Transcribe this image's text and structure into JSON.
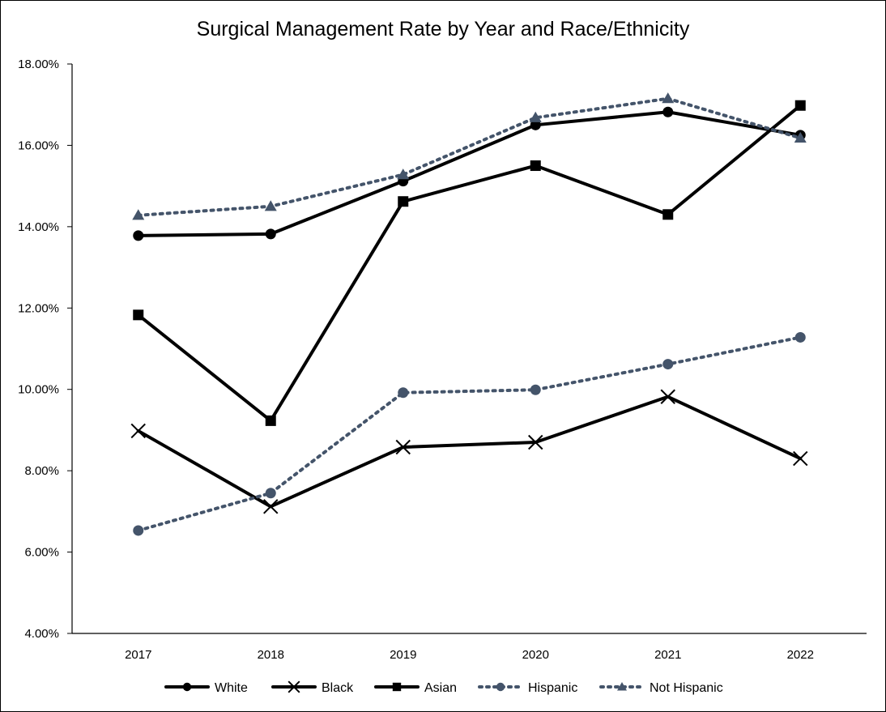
{
  "chart_data": {
    "type": "line",
    "title": "Surgical Management Rate by Year and Race/Ethnicity",
    "xlabel": "",
    "ylabel": "",
    "categories": [
      "2017",
      "2018",
      "2019",
      "2020",
      "2021",
      "2022"
    ],
    "ylim": [
      4,
      18
    ],
    "yticks": [
      4,
      6,
      8,
      10,
      12,
      14,
      16,
      18
    ],
    "ytick_labels": [
      "4.00%",
      "6.00%",
      "8.00%",
      "10.00%",
      "12.00%",
      "14.00%",
      "16.00%",
      "18.00%"
    ],
    "grid": false,
    "legend_position": "bottom",
    "series": [
      {
        "name": "White",
        "values": [
          13.78,
          13.82,
          15.12,
          16.5,
          16.82,
          16.25
        ],
        "color": "#000000",
        "dash": "solid",
        "marker": "circle"
      },
      {
        "name": "Black",
        "values": [
          8.98,
          7.12,
          8.58,
          8.7,
          9.82,
          8.3
        ],
        "color": "#000000",
        "dash": "solid",
        "marker": "x"
      },
      {
        "name": "Asian",
        "values": [
          11.83,
          9.23,
          14.62,
          15.5,
          14.3,
          16.98
        ],
        "color": "#000000",
        "dash": "solid",
        "marker": "square"
      },
      {
        "name": "Hispanic",
        "values": [
          6.53,
          7.45,
          9.92,
          9.99,
          10.62,
          11.28
        ],
        "color": "#44546a",
        "dash": "dotted",
        "marker": "circle"
      },
      {
        "name": "Not Hispanic",
        "values": [
          14.28,
          14.5,
          15.28,
          16.68,
          17.15,
          16.18
        ],
        "color": "#44546a",
        "dash": "dotted",
        "marker": "triangle"
      }
    ]
  }
}
